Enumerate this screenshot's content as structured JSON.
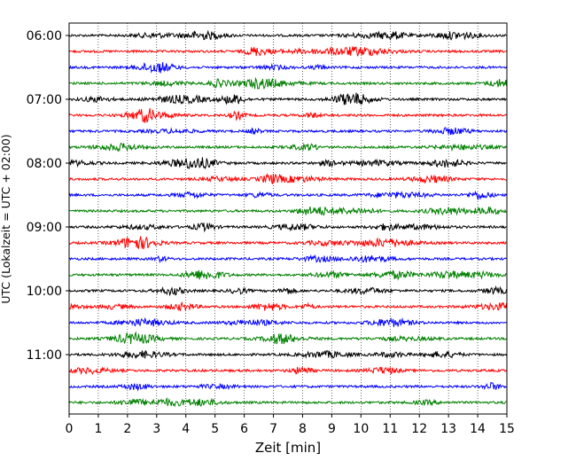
{
  "chart_data": {
    "type": "line",
    "xlabel": "Zeit  [min]",
    "ylabel": "UTC (Lokalzeit = UTC + 02:00)",
    "xlim": [
      0,
      15
    ],
    "x_ticks": [
      "0",
      "1",
      "2",
      "3",
      "4",
      "5",
      "6",
      "7",
      "8",
      "9",
      "10",
      "11",
      "12",
      "13",
      "14",
      "15"
    ],
    "y_tick_labels": [
      "06:00",
      "07:00",
      "08:00",
      "09:00",
      "10:00",
      "11:00"
    ],
    "grid": "vertical dotted at each minute",
    "trace_interval_min": 15,
    "start_time_utc": "06:00",
    "trace_colors": [
      "#000000",
      "#ff0000",
      "#0000ff",
      "#008000"
    ],
    "trace_count": 24
  }
}
